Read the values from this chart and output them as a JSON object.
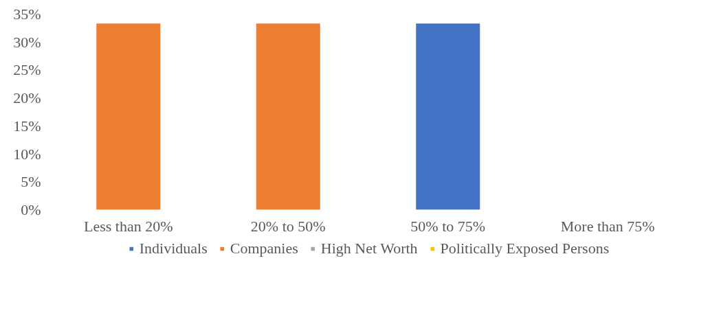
{
  "chart_data": {
    "type": "bar",
    "stacked": true,
    "categories": [
      "Less than 20%",
      "20% to 50%",
      "50% to 75%",
      "More than 75%"
    ],
    "series": [
      {
        "name": "Individuals",
        "color": "#4472c4",
        "values": [
          0,
          0,
          33.3,
          0
        ]
      },
      {
        "name": "Companies",
        "color": "#ed7d31",
        "values": [
          33.3,
          33.3,
          0,
          0
        ]
      },
      {
        "name": "High Net Worth",
        "color": "#a5a5a5",
        "values": [
          0,
          0,
          0,
          0
        ]
      },
      {
        "name": "Politically Exposed Persons",
        "color": "#ffc000",
        "values": [
          0,
          0,
          0,
          0
        ]
      }
    ],
    "ylim": [
      0,
      35
    ],
    "yticks": [
      {
        "value": 0,
        "label": "0%"
      },
      {
        "value": 5,
        "label": "5%"
      },
      {
        "value": 10,
        "label": "10%"
      },
      {
        "value": 15,
        "label": "15%"
      },
      {
        "value": 20,
        "label": "20%"
      },
      {
        "value": 25,
        "label": "25%"
      },
      {
        "value": 30,
        "label": "30%"
      },
      {
        "value": 35,
        "label": "35%"
      }
    ],
    "grid": false,
    "legend": "bottom"
  }
}
